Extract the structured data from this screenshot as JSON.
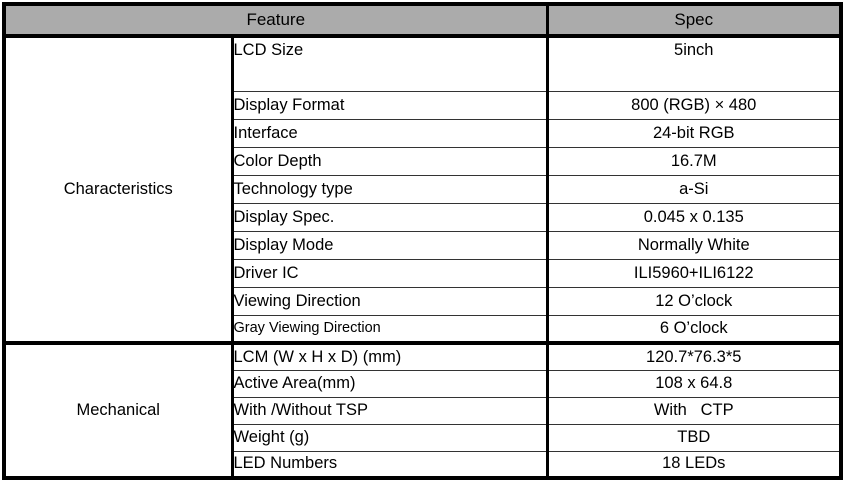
{
  "table": {
    "header": {
      "feature": "Feature",
      "spec": "Spec"
    },
    "header_bg": "#ababab",
    "border_color": "#000000",
    "sections": [
      {
        "group": "Characteristics",
        "rows": [
          {
            "label": "LCD Size",
            "value": "5inch"
          },
          {
            "label": "Display Format",
            "value": "800 (RGB) × 480"
          },
          {
            "label": "Interface",
            "value": "24-bit RGB"
          },
          {
            "label": "Color Depth",
            "value": "16.7M"
          },
          {
            "label": "Technology type",
            "value": "a-Si"
          },
          {
            "label": "Display Spec.",
            "value": "0.045 x 0.135"
          },
          {
            "label": "Display Mode",
            "value": "Normally White"
          },
          {
            "label": "Driver IC",
            "value": "ILI5960+ILI6122"
          },
          {
            "label": "Viewing Direction",
            "value": "12 O’clock"
          },
          {
            "label": "Gray Viewing Direction",
            "value": "6 O’clock"
          }
        ]
      },
      {
        "group": "Mechanical",
        "rows": [
          {
            "label": "LCM (W x H x D) (mm)",
            "value": "120.7*76.3*5"
          },
          {
            "label": "Active Area(mm)",
            "value": "108 x 64.8"
          },
          {
            "label": "With /Without TSP",
            "value": "With   CTP"
          },
          {
            "label": "Weight (g)",
            "value": "TBD"
          },
          {
            "label": "LED Numbers",
            "value": "18 LEDs"
          }
        ]
      }
    ]
  }
}
